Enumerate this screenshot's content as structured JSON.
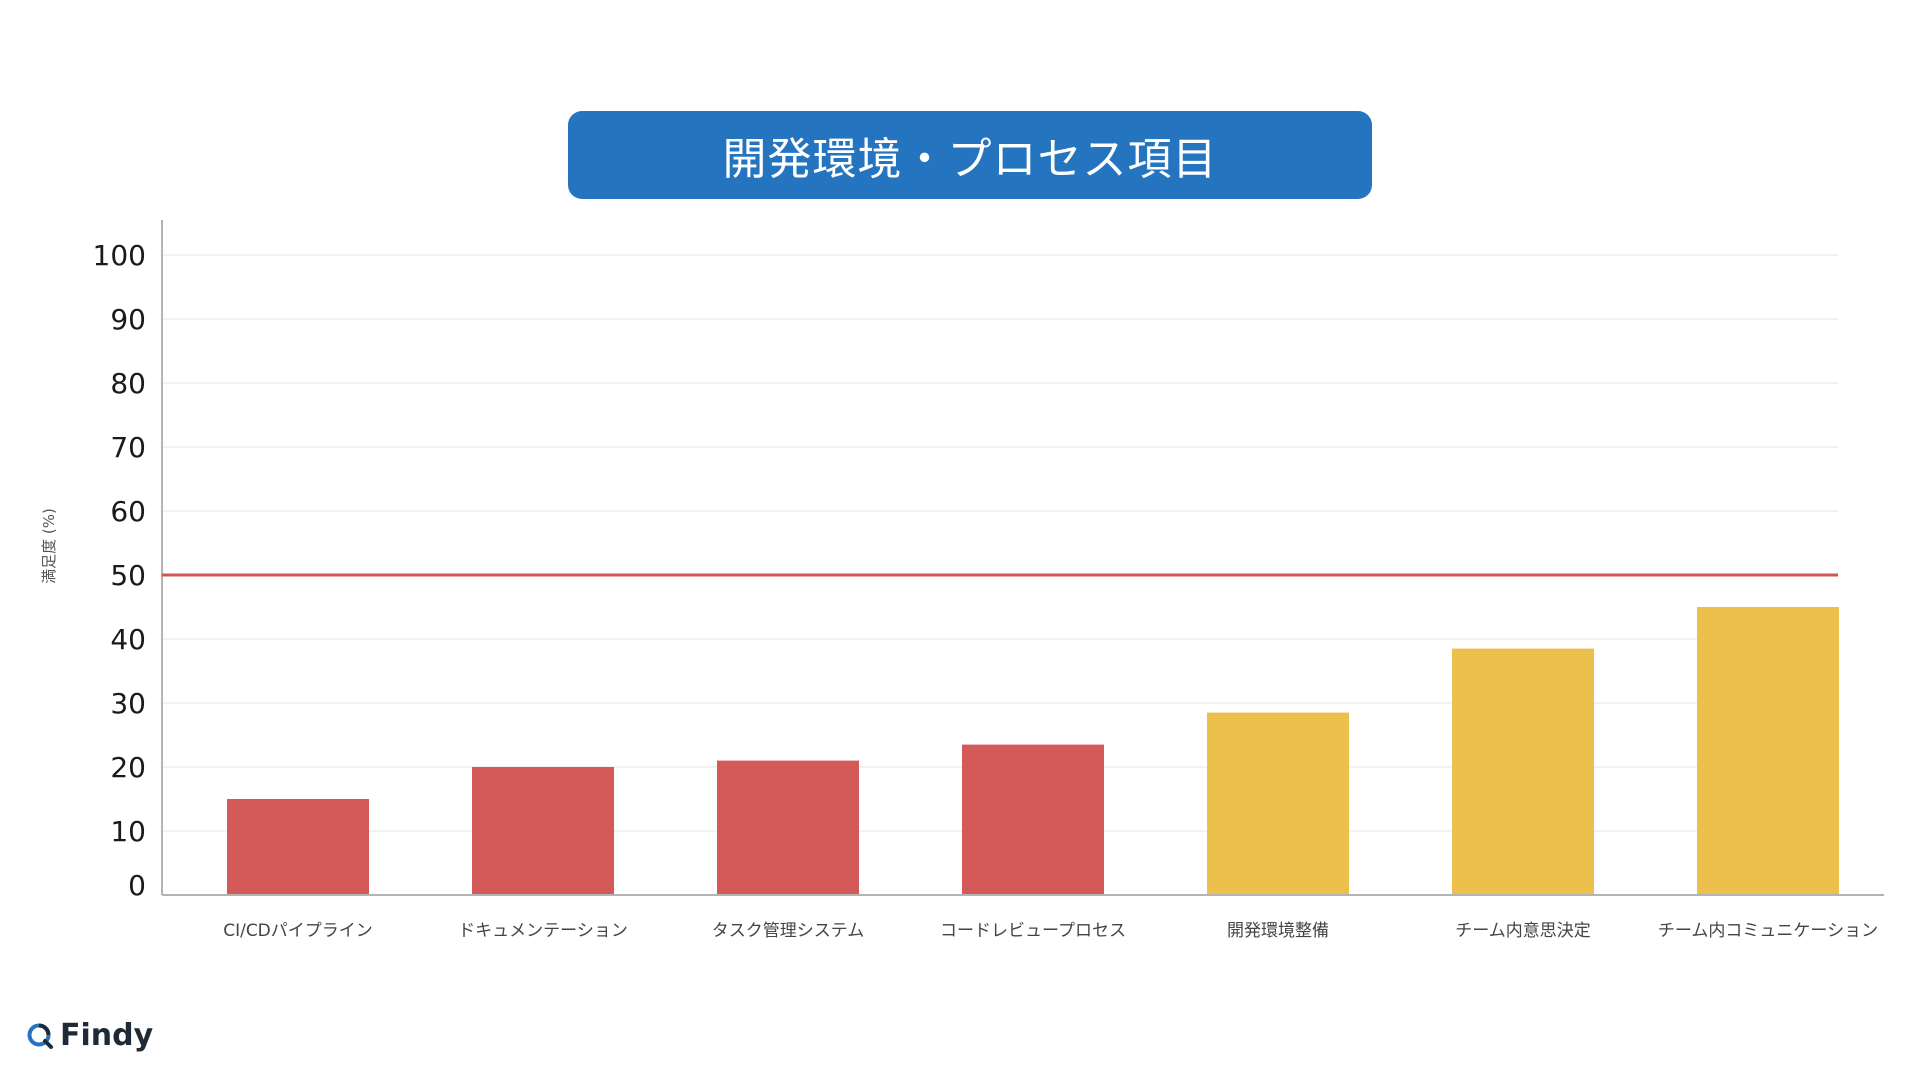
{
  "colors": {
    "banner": "#2474bf",
    "bar_low": "#d45a5a",
    "bar_high": "#ecc04c",
    "threshold": "#cf5757",
    "grid": "#e6e6e6",
    "axis": "#b4b4b4",
    "tick_text": "#1a1a1a",
    "category_text": "#444444"
  },
  "brand": {
    "name": "Findy",
    "logo_icon": "findy-logo-icon"
  },
  "chart_data": {
    "type": "bar",
    "title": "開発環境・プロセス項目",
    "xlabel": "",
    "ylabel": "満足度 (%)",
    "ylim": [
      0,
      100
    ],
    "yticks": [
      0,
      10,
      20,
      30,
      40,
      50,
      60,
      70,
      80,
      90,
      100
    ],
    "grid": true,
    "categories": [
      "CI/CDパイプライン",
      "ドキュメンテーション",
      "タスク管理システム",
      "コードレビュープロセス",
      "開発環境整備",
      "チーム内意思決定",
      "チーム内コミュニケーション"
    ],
    "values": [
      15,
      20,
      21,
      23.5,
      28.5,
      38.5,
      45
    ],
    "bar_colors": [
      "#d45a5a",
      "#d45a5a",
      "#d45a5a",
      "#d45a5a",
      "#ecc04c",
      "#ecc04c",
      "#ecc04c"
    ],
    "threshold": 50
  }
}
